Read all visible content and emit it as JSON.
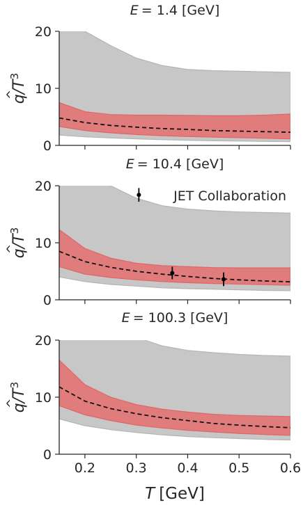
{
  "chart_data": {
    "type": "area",
    "xlabel_prefix": "T",
    "xlabel_unit": "[GeV]",
    "x_ticks": [
      0.2,
      0.3,
      0.4,
      0.5,
      0.6
    ],
    "x_tick_labels": [
      "0.2",
      "0.3",
      "0.4",
      "0.5",
      "0.6"
    ],
    "xlim": [
      0.15,
      0.6
    ],
    "colors": {
      "outer_band": "#c7c7c7",
      "inner_band": "#e07c7c",
      "inner_edge": "#e06666",
      "median": "#111111",
      "data_points": "#000000"
    },
    "panels": [
      {
        "title_prefix": "E",
        "title_value": "= 1.4 [GeV]",
        "ylabel_main": "q",
        "ylabel_den": "/T",
        "ylabel_exp": "3",
        "ylim": [
          0,
          20
        ],
        "y_ticks": [
          0,
          10,
          20
        ],
        "y_tick_labels": [
          "0",
          "10",
          "20"
        ],
        "x": [
          0.15,
          0.2,
          0.25,
          0.3,
          0.35,
          0.4,
          0.45,
          0.5,
          0.55,
          0.6
        ],
        "outer_upper": [
          28.0,
          20.0,
          17.5,
          15.3,
          14.0,
          13.3,
          13.1,
          13.0,
          12.9,
          12.8
        ],
        "outer_lower": [
          1.8,
          1.5,
          1.3,
          1.15,
          1.0,
          0.9,
          0.8,
          0.75,
          0.7,
          0.65
        ],
        "inner_upper": [
          7.5,
          5.9,
          5.4,
          5.3,
          5.3,
          5.25,
          5.2,
          5.2,
          5.3,
          5.5
        ],
        "inner_lower": [
          3.3,
          2.6,
          2.2,
          1.9,
          1.7,
          1.55,
          1.45,
          1.35,
          1.25,
          1.15
        ],
        "median": [
          4.8,
          4.0,
          3.5,
          3.2,
          2.95,
          2.8,
          2.6,
          2.5,
          2.4,
          2.3
        ],
        "points": []
      },
      {
        "title_prefix": "E",
        "title_value": "= 10.4 [GeV]",
        "ylabel_main": "q",
        "ylabel_den": "/T",
        "ylabel_exp": "3",
        "ylim": [
          0,
          20
        ],
        "y_ticks": [
          0,
          10,
          20
        ],
        "y_tick_labels": [
          "0",
          "10",
          "20"
        ],
        "legend_label": "JET Collaboration",
        "x": [
          0.15,
          0.2,
          0.25,
          0.3,
          0.35,
          0.4,
          0.45,
          0.5,
          0.55,
          0.6
        ],
        "outer_upper": [
          28.0,
          24.0,
          20.0,
          17.8,
          16.5,
          15.9,
          15.6,
          15.4,
          15.3,
          15.2
        ],
        "outer_lower": [
          4.0,
          3.2,
          2.7,
          2.4,
          2.1,
          1.95,
          1.85,
          1.75,
          1.65,
          1.6
        ],
        "inner_upper": [
          12.3,
          9.0,
          7.3,
          6.4,
          6.0,
          5.8,
          5.65,
          5.6,
          5.6,
          5.6
        ],
        "inner_lower": [
          5.8,
          4.5,
          3.9,
          3.5,
          3.2,
          3.0,
          2.85,
          2.75,
          2.65,
          2.55
        ],
        "median": [
          8.5,
          6.7,
          5.7,
          5.0,
          4.5,
          4.1,
          3.75,
          3.5,
          3.3,
          3.15
        ],
        "points": [
          {
            "x": 0.305,
            "y": 18.4,
            "yerr": 1.2
          },
          {
            "x": 0.37,
            "y": 4.7,
            "yerr": 1.1
          },
          {
            "x": 0.47,
            "y": 3.6,
            "yerr": 1.2
          }
        ]
      },
      {
        "title_prefix": "E",
        "title_value": "= 100.3 [GeV]",
        "ylabel_main": "q",
        "ylabel_den": "/T",
        "ylabel_exp": "3",
        "ylim": [
          0,
          20
        ],
        "y_ticks": [
          0,
          10,
          20
        ],
        "y_tick_labels": [
          "0",
          "10",
          "20"
        ],
        "x": [
          0.15,
          0.2,
          0.25,
          0.3,
          0.35,
          0.4,
          0.45,
          0.5,
          0.55,
          0.6
        ],
        "outer_upper": [
          30.0,
          25.0,
          22.0,
          20.5,
          19.0,
          18.2,
          17.8,
          17.5,
          17.3,
          17.2
        ],
        "outer_lower": [
          6.2,
          5.0,
          4.3,
          3.8,
          3.4,
          3.1,
          2.9,
          2.75,
          2.6,
          2.5
        ],
        "inner_upper": [
          16.5,
          12.2,
          10.0,
          8.7,
          7.9,
          7.4,
          7.0,
          6.8,
          6.7,
          6.6
        ],
        "inner_lower": [
          8.5,
          6.9,
          5.9,
          5.1,
          4.6,
          4.2,
          3.9,
          3.65,
          3.45,
          3.3
        ],
        "median": [
          11.8,
          9.3,
          8.0,
          7.1,
          6.4,
          5.9,
          5.4,
          5.1,
          4.85,
          4.65
        ],
        "points": []
      }
    ]
  }
}
